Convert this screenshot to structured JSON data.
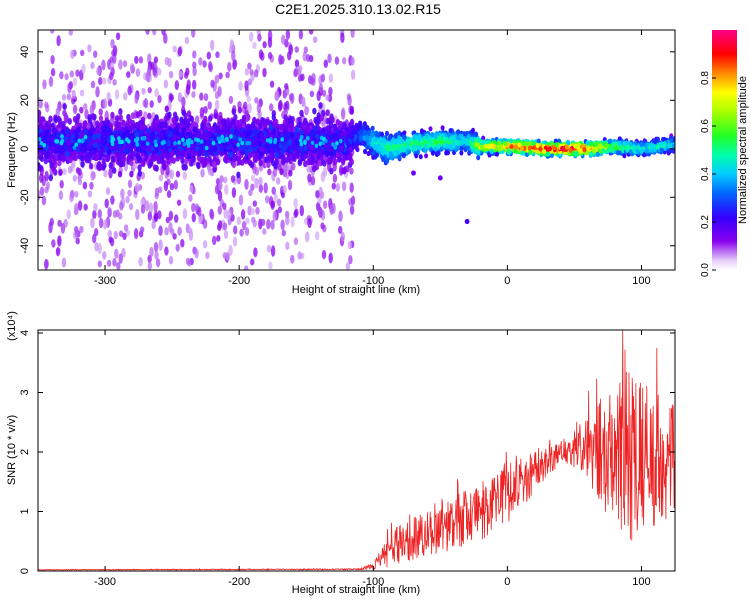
{
  "title": "C2E1.2025.310.13.02.R15",
  "colors": {
    "snr_line": "#ee2222",
    "background": "#ffffff",
    "axis": "#000000"
  },
  "chart_data": [
    {
      "type": "heatmap",
      "name": "spectrogram",
      "xlabel": "Height of straight line (km)",
      "ylabel": "Frequency (Hz)",
      "xlim": [
        -350,
        125
      ],
      "ylim": [
        -50,
        49
      ],
      "xticks": [
        -300,
        -200,
        -100,
        0,
        100
      ],
      "xtick_labels": [
        "-300",
        "-200",
        "-100",
        "0",
        "100"
      ],
      "yticks": [
        -40,
        -20,
        0,
        20,
        40
      ],
      "ytick_labels": [
        "-40",
        "-20",
        "0",
        "20",
        "40"
      ],
      "colorbar": {
        "label": "Normalized spectral amplitude",
        "range": [
          0,
          1
        ],
        "ticks": [
          0.0,
          0.2,
          0.4,
          0.6,
          0.8
        ],
        "tick_labels": [
          "0.0",
          "0.2",
          "0.4",
          "0.6",
          "0.8"
        ],
        "colormap": "purple-blue-cyan-green-yellow-red-magenta"
      },
      "ridge": {
        "description_points_height_km": [
          -350,
          -120,
          -110,
          -100,
          -90,
          -70,
          -50,
          -30,
          -20,
          0,
          30,
          60,
          80,
          100,
          125
        ],
        "center_frequency_hz": [
          3,
          3,
          6,
          3,
          0,
          2,
          3,
          3,
          1,
          1,
          0,
          0,
          1,
          0,
          2
        ],
        "amplitude": [
          0.18,
          0.22,
          0.3,
          0.45,
          0.5,
          0.55,
          0.55,
          0.45,
          0.7,
          0.85,
          0.95,
          0.95,
          0.6,
          0.5,
          0.45
        ]
      },
      "isolated_points": [
        {
          "height_km": -70,
          "frequency_hz": -10,
          "amplitude": 0.15
        },
        {
          "height_km": -50,
          "frequency_hz": -12,
          "amplitude": 0.15
        },
        {
          "height_km": -30,
          "frequency_hz": -30,
          "amplitude": 0.2
        }
      ]
    },
    {
      "type": "line",
      "name": "snr",
      "xlabel": "Height of straight line (km)",
      "ylabel": "SNR (10 * v/v)",
      "y_multiplier_label": "(x10⁴)",
      "xlim": [
        -350,
        125
      ],
      "ylim": [
        0,
        4.05
      ],
      "xticks": [
        -300,
        -200,
        -100,
        0,
        100
      ],
      "xtick_labels": [
        "-300",
        "-200",
        "-100",
        "0",
        "100"
      ],
      "yticks": [
        0,
        1,
        2,
        3,
        4
      ],
      "ytick_labels": [
        "0",
        "1",
        "2",
        "3",
        "4"
      ],
      "series": [
        {
          "name": "SNR",
          "envelope_x": [
            -350,
            -110,
            -100,
            -90,
            -80,
            -60,
            -40,
            -20,
            0,
            20,
            40,
            55,
            70,
            80,
            90,
            100,
            110,
            125
          ],
          "envelope_mean": [
            0.02,
            0.03,
            0.08,
            0.3,
            0.45,
            0.6,
            0.8,
            1.0,
            1.3,
            1.65,
            2.0,
            2.1,
            2.0,
            1.9,
            1.85,
            1.9,
            1.9,
            1.85
          ],
          "envelope_amplitude": [
            0.005,
            0.01,
            0.05,
            0.25,
            0.35,
            0.4,
            0.45,
            0.5,
            0.5,
            0.35,
            0.2,
            0.4,
            1.0,
            1.4,
            1.6,
            1.4,
            1.2,
            1.0
          ]
        }
      ]
    }
  ]
}
